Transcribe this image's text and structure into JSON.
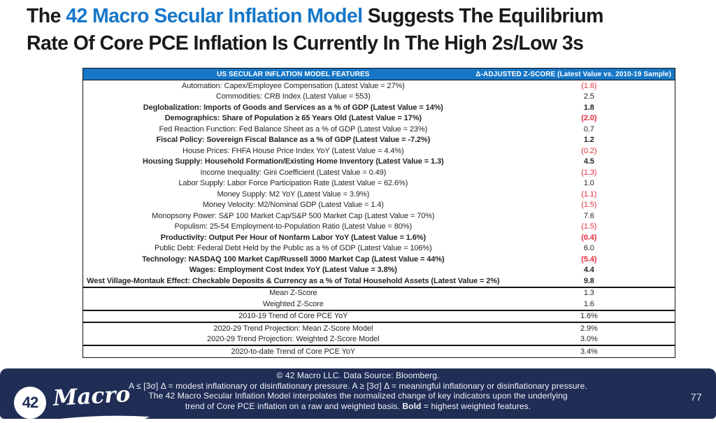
{
  "title": {
    "prefix": "The ",
    "highlight": "42 Macro Secular Inflation Model",
    "suffix": " Suggests The Equilibrium",
    "line2": "Rate Of Core PCE Inflation Is Currently In The High 2s/Low 3s"
  },
  "colors": {
    "title_highlight": "#1777c9",
    "table_header_bg": "#1776c5",
    "negative_value": "#e62b3a",
    "footer_bg": "#202d55",
    "table_border": "#131313"
  },
  "chart_data": {
    "type": "table",
    "title": "US Secular Inflation Model",
    "columns": [
      "US SECULAR INFLATION MODEL FEATURES",
      "Δ-ADJUSTED Z-SCORE (Latest Value vs. 2010-19 Sample)"
    ],
    "sections": [
      {
        "rows": [
          {
            "label": "Automation: Capex/Employee Compensation (Latest Value = 27%)",
            "display": "(1.6)",
            "z": -1.6,
            "bold": false,
            "neg": true
          },
          {
            "label": "Commodities: CRB Index (Latest Value = 553)",
            "display": "2.5",
            "z": 2.5,
            "bold": false,
            "neg": false
          },
          {
            "label": "Deglobalization: Imports of Goods and Services as a % of GDP (Latest Value = 14%)",
            "display": "1.8",
            "z": 1.8,
            "bold": true,
            "neg": false
          },
          {
            "label": "Demographics: Share of Population ≥ 65 Years Old (Latest Value = 17%)",
            "display": "(2.0)",
            "z": -2.0,
            "bold": true,
            "neg": true
          },
          {
            "label": "Fed Reaction Function: Fed Balance Sheet as a % of GDP (Latest Value = 23%)",
            "display": "0.7",
            "z": 0.7,
            "bold": false,
            "neg": false
          },
          {
            "label": "Fiscal Policy: Sovereign Fiscal Balance as a % of GDP (Latest Value = -7.2%)",
            "display": "1.2",
            "z": 1.2,
            "bold": true,
            "neg": false
          },
          {
            "label": "House Prices: FHFA House Price Index YoY (Latest Value = 4.4%)",
            "display": "(0.2)",
            "z": -0.2,
            "bold": false,
            "neg": true
          },
          {
            "label": "Housing Supply: Household Formation/Existing Home Inventory (Latest Value = 1.3)",
            "display": "4.5",
            "z": 4.5,
            "bold": true,
            "neg": false
          },
          {
            "label": "Income Inequality: Gini Coefficient (Latest Value = 0.49)",
            "display": "(1.3)",
            "z": -1.3,
            "bold": false,
            "neg": true
          },
          {
            "label": "Labor Supply: Labor Force Participation Rate (Latest Value = 62.6%)",
            "display": "1.0",
            "z": 1.0,
            "bold": false,
            "neg": false
          },
          {
            "label": "Money Supply: M2 YoY (Latest Value = 3.9%)",
            "display": "(1.1)",
            "z": -1.1,
            "bold": false,
            "neg": true
          },
          {
            "label": "Money Velocity: M2/Nominal GDP (Latest Value = 1.4)",
            "display": "(1.5)",
            "z": -1.5,
            "bold": false,
            "neg": true
          },
          {
            "label": "Monopsony Power: S&P 100 Market Cap/S&P 500 Market Cap (Latest Value = 70%)",
            "display": "7.6",
            "z": 7.6,
            "bold": false,
            "neg": false
          },
          {
            "label": "Populism: 25-54 Employment-to-Population Ratio (Latest Value = 80%)",
            "display": "(1.5)",
            "z": -1.5,
            "bold": false,
            "neg": true
          },
          {
            "label": "Productivity: Output Per Hour of Nonfarm Labor YoY (Latest Value = 1.6%)",
            "display": "(0.4)",
            "z": -0.4,
            "bold": true,
            "neg": true
          },
          {
            "label": "Public Debt: Federal Debt Held by the Public as a % of GDP (Latest Value = 106%)",
            "display": "6.0",
            "z": 6.0,
            "bold": false,
            "neg": false
          },
          {
            "label": "Technology: NASDAQ 100 Market Cap/Russell 3000 Market Cap (Latest Value = 44%)",
            "display": "(5.4)",
            "z": -5.4,
            "bold": true,
            "neg": true
          },
          {
            "label": "Wages: Employment Cost Index YoY (Latest Value = 3.8%)",
            "display": "4.4",
            "z": 4.4,
            "bold": true,
            "neg": false
          },
          {
            "label": "West Village-Montauk Effect: Checkable Deposits & Currency as a % of Total Household Assets (Latest Value = 2%)",
            "display": "9.8",
            "z": 9.8,
            "bold": true,
            "neg": false
          }
        ]
      },
      {
        "rows": [
          {
            "label": "Mean Z-Score",
            "display": "1.3",
            "z": 1.3,
            "bold": false,
            "neg": false
          },
          {
            "label": "Weighted Z-Score",
            "display": "1.6",
            "z": 1.6,
            "bold": false,
            "neg": false
          }
        ]
      },
      {
        "rows": [
          {
            "label": "2010-19 Trend of Core PCE YoY",
            "display": "1.6%",
            "z": 1.6,
            "bold": false,
            "neg": false
          }
        ]
      },
      {
        "rows": [
          {
            "label": "2020-29 Trend Projection: Mean Z-Score Model",
            "display": "2.9%",
            "z": 2.9,
            "bold": false,
            "neg": false
          },
          {
            "label": "2020-29 Trend Projection: Weighted Z-Score Model",
            "display": "3.0%",
            "z": 3.0,
            "bold": false,
            "neg": false
          }
        ]
      },
      {
        "rows": [
          {
            "label": "2020-to-date Trend of Core PCE YoY",
            "display": "3.4%",
            "z": 3.4,
            "bold": false,
            "neg": false
          }
        ]
      }
    ]
  },
  "footer": {
    "line1": "© 42 Macro LLC. Data Source: Bloomberg.",
    "line2": "A ≤ [3σ] Δ = modest inflationary or disinflationary pressure. A ≥ [3σ] Δ = meaningful inflationary or disinflationary pressure.",
    "line3": "The 42 Macro Secular Inflation Model interpolates the normalized change of key indicators upon the underlying",
    "line4_prefix": "trend of Core PCE inflation on a raw and weighted basis. ",
    "line4_bold": "Bold",
    "line4_suffix": " = highest weighted features.",
    "page_number": "77",
    "logo_number": "42",
    "logo_text": "Macro"
  }
}
